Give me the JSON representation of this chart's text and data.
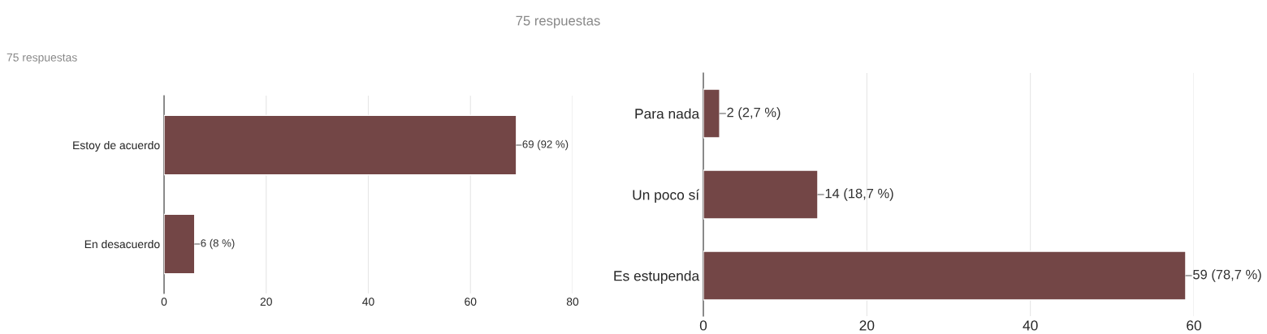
{
  "chart_data": [
    {
      "type": "bar",
      "orientation": "horizontal",
      "title": "75 respuestas",
      "categories": [
        "Estoy de acuerdo",
        "En desacuerdo"
      ],
      "values": [
        69,
        6
      ],
      "value_labels": [
        "69 (92 %)",
        "6 (8 %)"
      ],
      "color": "#734646",
      "xlim": [
        0,
        80
      ],
      "xticks": [
        0,
        20,
        40,
        60,
        80
      ],
      "grid": "x",
      "legend": false
    },
    {
      "type": "bar",
      "orientation": "horizontal",
      "title": "75 respuestas",
      "categories": [
        "Para nada",
        "Un poco sí",
        "Es estupenda"
      ],
      "values": [
        2,
        14,
        59
      ],
      "value_labels": [
        "2 (2,7 %)",
        "14 (18,7 %)",
        "59 (78,7 %)"
      ],
      "color": "#734646",
      "xlim": [
        0,
        60
      ],
      "xticks": [
        0,
        20,
        40,
        60
      ],
      "grid": "x",
      "legend": false
    }
  ]
}
